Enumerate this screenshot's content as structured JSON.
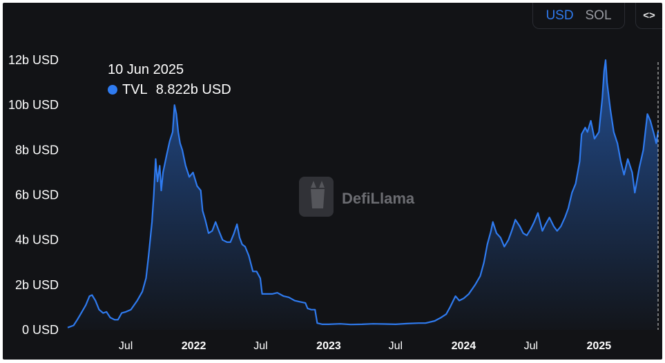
{
  "controls": {
    "currency_options": [
      "USD",
      "SOL"
    ],
    "active_currency": "USD",
    "embed_label": "<>"
  },
  "tooltip": {
    "date": "10 Jun 2025",
    "series": "TVL",
    "value": "8.822b USD"
  },
  "watermark": "DefiLlama",
  "colors": {
    "line": "#2f7bf0",
    "background": "#121316",
    "text": "#ffffff"
  },
  "chart_data": {
    "type": "area",
    "title": "",
    "xlabel": "",
    "ylabel": "",
    "ylim": [
      0,
      12
    ],
    "y_unit": "b USD",
    "y_ticks": [
      "0 USD",
      "2b USD",
      "4b USD",
      "6b USD",
      "8b USD",
      "10b USD",
      "12b USD"
    ],
    "x_ticks": [
      {
        "label": "Jul",
        "date": "2021-07-01",
        "bold": false
      },
      {
        "label": "2022",
        "date": "2022-01-01",
        "bold": true
      },
      {
        "label": "Jul",
        "date": "2022-07-01",
        "bold": false
      },
      {
        "label": "2023",
        "date": "2023-01-01",
        "bold": true
      },
      {
        "label": "Jul",
        "date": "2023-07-01",
        "bold": false
      },
      {
        "label": "2024",
        "date": "2024-01-01",
        "bold": true
      },
      {
        "label": "Jul",
        "date": "2024-07-01",
        "bold": false
      },
      {
        "label": "2025",
        "date": "2025-01-01",
        "bold": true
      }
    ],
    "series": [
      {
        "name": "TVL",
        "points": [
          [
            "2021-01-25",
            0.1
          ],
          [
            "2021-02-10",
            0.2
          ],
          [
            "2021-02-20",
            0.45
          ],
          [
            "2021-03-01",
            0.7
          ],
          [
            "2021-03-15",
            1.1
          ],
          [
            "2021-03-25",
            1.5
          ],
          [
            "2021-04-01",
            1.55
          ],
          [
            "2021-04-10",
            1.3
          ],
          [
            "2021-04-20",
            0.9
          ],
          [
            "2021-05-01",
            0.75
          ],
          [
            "2021-05-10",
            0.8
          ],
          [
            "2021-05-20",
            0.55
          ],
          [
            "2021-06-01",
            0.45
          ],
          [
            "2021-06-10",
            0.45
          ],
          [
            "2021-06-20",
            0.75
          ],
          [
            "2021-07-01",
            0.8
          ],
          [
            "2021-07-15",
            0.9
          ],
          [
            "2021-08-01",
            1.3
          ],
          [
            "2021-08-15",
            1.7
          ],
          [
            "2021-08-25",
            2.3
          ],
          [
            "2021-09-01",
            3.3
          ],
          [
            "2021-09-10",
            4.8
          ],
          [
            "2021-09-15",
            6.0
          ],
          [
            "2021-09-20",
            7.6
          ],
          [
            "2021-09-25",
            6.6
          ],
          [
            "2021-10-01",
            7.3
          ],
          [
            "2021-10-05",
            6.2
          ],
          [
            "2021-10-10",
            7.0
          ],
          [
            "2021-10-20",
            7.8
          ],
          [
            "2021-10-28",
            8.4
          ],
          [
            "2021-11-05",
            8.8
          ],
          [
            "2021-11-10",
            10.0
          ],
          [
            "2021-11-15",
            9.6
          ],
          [
            "2021-11-20",
            8.8
          ],
          [
            "2021-11-25",
            8.3
          ],
          [
            "2021-12-01",
            8.0
          ],
          [
            "2021-12-10",
            7.3
          ],
          [
            "2021-12-20",
            6.8
          ],
          [
            "2021-12-30",
            7.0
          ],
          [
            "2022-01-10",
            6.4
          ],
          [
            "2022-01-20",
            6.2
          ],
          [
            "2022-01-25",
            5.3
          ],
          [
            "2022-02-01",
            4.9
          ],
          [
            "2022-02-10",
            4.3
          ],
          [
            "2022-02-20",
            4.4
          ],
          [
            "2022-03-01",
            4.8
          ],
          [
            "2022-03-10",
            4.4
          ],
          [
            "2022-03-20",
            4.0
          ],
          [
            "2022-04-01",
            3.9
          ],
          [
            "2022-04-10",
            3.9
          ],
          [
            "2022-04-20",
            4.3
          ],
          [
            "2022-04-28",
            4.7
          ],
          [
            "2022-05-05",
            4.1
          ],
          [
            "2022-05-12",
            3.8
          ],
          [
            "2022-05-20",
            3.7
          ],
          [
            "2022-05-30",
            3.3
          ],
          [
            "2022-06-10",
            2.6
          ],
          [
            "2022-06-20",
            2.6
          ],
          [
            "2022-06-30",
            2.3
          ],
          [
            "2022-07-05",
            1.6
          ],
          [
            "2022-07-20",
            1.6
          ],
          [
            "2022-08-01",
            1.6
          ],
          [
            "2022-08-15",
            1.65
          ],
          [
            "2022-09-01",
            1.5
          ],
          [
            "2022-09-15",
            1.45
          ],
          [
            "2022-10-01",
            1.3
          ],
          [
            "2022-10-15",
            1.25
          ],
          [
            "2022-10-30",
            1.2
          ],
          [
            "2022-11-05",
            0.95
          ],
          [
            "2022-11-15",
            0.9
          ],
          [
            "2022-11-25",
            0.9
          ],
          [
            "2022-12-01",
            0.3
          ],
          [
            "2022-12-15",
            0.25
          ],
          [
            "2023-01-01",
            0.25
          ],
          [
            "2023-02-01",
            0.27
          ],
          [
            "2023-03-01",
            0.24
          ],
          [
            "2023-04-01",
            0.25
          ],
          [
            "2023-05-01",
            0.27
          ],
          [
            "2023-06-01",
            0.26
          ],
          [
            "2023-07-01",
            0.25
          ],
          [
            "2023-08-01",
            0.28
          ],
          [
            "2023-09-01",
            0.3
          ],
          [
            "2023-09-20",
            0.3
          ],
          [
            "2023-10-15",
            0.4
          ],
          [
            "2023-11-01",
            0.55
          ],
          [
            "2023-11-15",
            0.7
          ],
          [
            "2023-11-25",
            1.0
          ],
          [
            "2023-12-01",
            1.2
          ],
          [
            "2023-12-10",
            1.5
          ],
          [
            "2023-12-20",
            1.3
          ],
          [
            "2024-01-01",
            1.4
          ],
          [
            "2024-01-15",
            1.6
          ],
          [
            "2024-02-01",
            2.0
          ],
          [
            "2024-02-15",
            2.4
          ],
          [
            "2024-02-25",
            3.0
          ],
          [
            "2024-03-05",
            3.8
          ],
          [
            "2024-03-15",
            4.4
          ],
          [
            "2024-03-20",
            4.8
          ],
          [
            "2024-03-30",
            4.3
          ],
          [
            "2024-04-10",
            4.1
          ],
          [
            "2024-04-20",
            3.7
          ],
          [
            "2024-05-01",
            4.0
          ],
          [
            "2024-05-10",
            4.4
          ],
          [
            "2024-05-20",
            4.9
          ],
          [
            "2024-06-01",
            4.6
          ],
          [
            "2024-06-10",
            4.3
          ],
          [
            "2024-06-20",
            4.2
          ],
          [
            "2024-07-01",
            4.5
          ],
          [
            "2024-07-10",
            4.8
          ],
          [
            "2024-07-20",
            5.2
          ],
          [
            "2024-08-01",
            4.4
          ],
          [
            "2024-08-10",
            4.7
          ],
          [
            "2024-08-20",
            5.0
          ],
          [
            "2024-09-01",
            4.6
          ],
          [
            "2024-09-10",
            4.4
          ],
          [
            "2024-09-20",
            4.6
          ],
          [
            "2024-10-01",
            5.0
          ],
          [
            "2024-10-10",
            5.4
          ],
          [
            "2024-10-20",
            6.1
          ],
          [
            "2024-10-30",
            6.5
          ],
          [
            "2024-11-10",
            7.5
          ],
          [
            "2024-11-15",
            8.7
          ],
          [
            "2024-11-25",
            9.0
          ],
          [
            "2024-12-01",
            8.8
          ],
          [
            "2024-12-10",
            9.3
          ],
          [
            "2024-12-20",
            8.5
          ],
          [
            "2025-01-01",
            8.8
          ],
          [
            "2025-01-10",
            10.3
          ],
          [
            "2025-01-15",
            11.5
          ],
          [
            "2025-01-19",
            12.0
          ],
          [
            "2025-01-23",
            11.0
          ],
          [
            "2025-02-01",
            9.8
          ],
          [
            "2025-02-10",
            8.8
          ],
          [
            "2025-02-20",
            8.3
          ],
          [
            "2025-03-01",
            7.5
          ],
          [
            "2025-03-10",
            6.9
          ],
          [
            "2025-03-20",
            7.6
          ],
          [
            "2025-04-01",
            7.0
          ],
          [
            "2025-04-08",
            6.1
          ],
          [
            "2025-04-20",
            7.2
          ],
          [
            "2025-05-01",
            8.0
          ],
          [
            "2025-05-12",
            9.6
          ],
          [
            "2025-05-20",
            9.3
          ],
          [
            "2025-05-30",
            8.7
          ],
          [
            "2025-06-05",
            8.3
          ],
          [
            "2025-06-10",
            8.822
          ]
        ]
      }
    ],
    "crosshair_date": "2025-06-10"
  }
}
